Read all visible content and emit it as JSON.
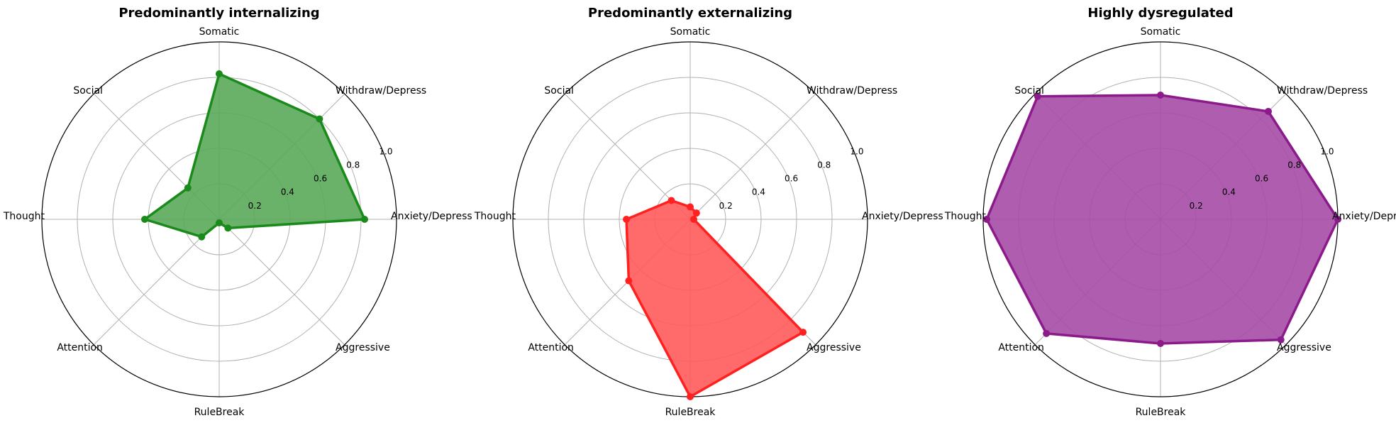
{
  "chart_data": [
    {
      "type": "radar",
      "title": "Predominantly internalizing",
      "categories": [
        "Anxiety/Depress",
        "Withdraw/Depress",
        "Somatic",
        "Social",
        "Thought",
        "Attention",
        "RuleBreak",
        "Aggressive"
      ],
      "values": [
        0.82,
        0.8,
        0.82,
        0.25,
        0.42,
        0.14,
        0.02,
        0.07
      ],
      "rlim": [
        0,
        1.0
      ],
      "rticks": [
        "0.2",
        "0.4",
        "0.6",
        "0.8",
        "1.0"
      ],
      "color": "#1a8a1a",
      "fill_color": "#5aa85a",
      "grid": true
    },
    {
      "type": "radar",
      "title": "Predominantly externalizing",
      "categories": [
        "Anxiety/Depress",
        "Withdraw/Depress",
        "Somatic",
        "Social",
        "Thought",
        "Attention",
        "RuleBreak",
        "Aggressive"
      ],
      "values": [
        0.02,
        0.05,
        0.07,
        0.15,
        0.36,
        0.49,
        1.0,
        0.9
      ],
      "rlim": [
        0,
        1.0
      ],
      "rticks": [
        "0.2",
        "0.4",
        "0.6",
        "0.8",
        "1.0"
      ],
      "color": "#ff2020",
      "fill_color": "#ff5a5a",
      "grid": true
    },
    {
      "type": "radar",
      "title": "Highly dysregulated",
      "categories": [
        "Anxiety/Depress",
        "Withdraw/Depress",
        "Somatic",
        "Social",
        "Thought",
        "Attention",
        "RuleBreak",
        "Aggressive"
      ],
      "values": [
        1.0,
        0.86,
        0.7,
        0.98,
        0.98,
        0.91,
        0.7,
        0.96
      ],
      "rlim": [
        0,
        1.0
      ],
      "rticks": [
        "0.2",
        "0.4",
        "0.6",
        "0.8",
        "1.0"
      ],
      "color": "#8b1a8b",
      "fill_color": "#a64ca6",
      "grid": true
    }
  ]
}
